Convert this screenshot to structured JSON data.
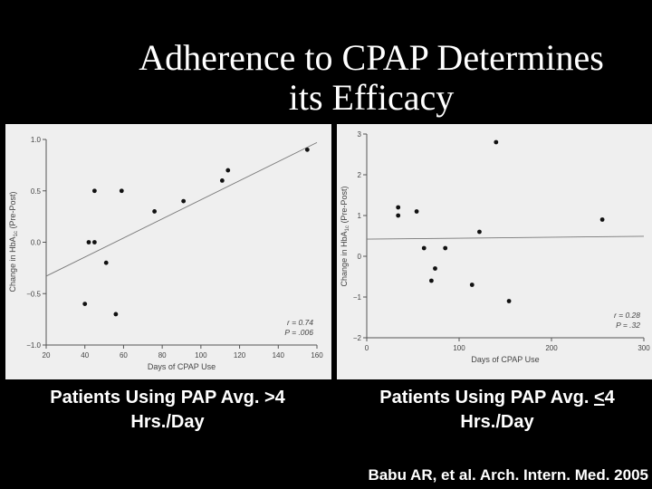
{
  "title": {
    "line1": "Adherence to CPAP Determines",
    "line2": "its Efficacy"
  },
  "chart_data": [
    {
      "type": "scatter",
      "xlabel": "Days of CPAP Use",
      "ylabel": "Change in HbA1c (Pre-Post)",
      "ylabel_main": "Change in HbA",
      "ylabel_sub": "1c",
      "ylabel_tail": " (Pre-Post)",
      "xlim": [
        20,
        160
      ],
      "ylim": [
        -1.0,
        1.0
      ],
      "xticks": [
        20,
        40,
        60,
        80,
        100,
        120,
        140,
        160
      ],
      "yticks": [
        -1.0,
        -0.5,
        0.0,
        0.5,
        1.0
      ],
      "ytick_labels": [
        "−1.0",
        "−0.5",
        "0.0",
        "0.5",
        "1.0"
      ],
      "points": [
        {
          "x": 40,
          "y": -0.6
        },
        {
          "x": 42,
          "y": 0.0
        },
        {
          "x": 45,
          "y": 0.5
        },
        {
          "x": 45,
          "y": 0.0
        },
        {
          "x": 51,
          "y": -0.2
        },
        {
          "x": 56,
          "y": -0.7
        },
        {
          "x": 59,
          "y": 0.5
        },
        {
          "x": 76,
          "y": 0.3
        },
        {
          "x": 91,
          "y": 0.4
        },
        {
          "x": 111,
          "y": 0.6
        },
        {
          "x": 114,
          "y": 0.7
        },
        {
          "x": 155,
          "y": 0.9
        }
      ],
      "fit_line": [
        {
          "x": 20,
          "y": -0.33
        },
        {
          "x": 160,
          "y": 0.97
        }
      ],
      "stats": [
        "r = 0.74",
        "P = .006"
      ],
      "caption": "Patients Using PAP Avg. >4 Hrs./Day"
    },
    {
      "type": "scatter",
      "xlabel": "Days of CPAP Use",
      "ylabel": "Change in HbA1c (Pre-Post)",
      "ylabel_main": "Change in HbA",
      "ylabel_sub": "1c",
      "ylabel_tail": " (Pre-Post)",
      "xlim": [
        0,
        300
      ],
      "ylim": [
        -2,
        3
      ],
      "xticks": [
        0,
        100,
        200,
        300
      ],
      "yticks": [
        -2,
        -1,
        0,
        1,
        2,
        3
      ],
      "ytick_labels": [
        "−2",
        "−1",
        "0",
        "1",
        "2",
        "3"
      ],
      "points": [
        {
          "x": 34,
          "y": 1.2
        },
        {
          "x": 34,
          "y": 1.0
        },
        {
          "x": 54,
          "y": 1.1
        },
        {
          "x": 62,
          "y": 0.2
        },
        {
          "x": 70,
          "y": -0.6
        },
        {
          "x": 74,
          "y": -0.3
        },
        {
          "x": 85,
          "y": 0.2
        },
        {
          "x": 114,
          "y": -0.7
        },
        {
          "x": 122,
          "y": 0.6
        },
        {
          "x": 140,
          "y": 2.8
        },
        {
          "x": 154,
          "y": -1.1
        },
        {
          "x": 255,
          "y": 0.9
        }
      ],
      "fit_line": [
        {
          "x": 0,
          "y": 0.42
        },
        {
          "x": 300,
          "y": 0.49
        }
      ],
      "stats": [
        "r = 0.28",
        "P = .32"
      ],
      "caption_main": "Patients Using PAP Avg. ",
      "caption_sym": "<",
      "caption_tail": "4 Hrs./Day"
    }
  ],
  "citation": "Babu AR, et al. Arch. Intern. Med. 2005"
}
